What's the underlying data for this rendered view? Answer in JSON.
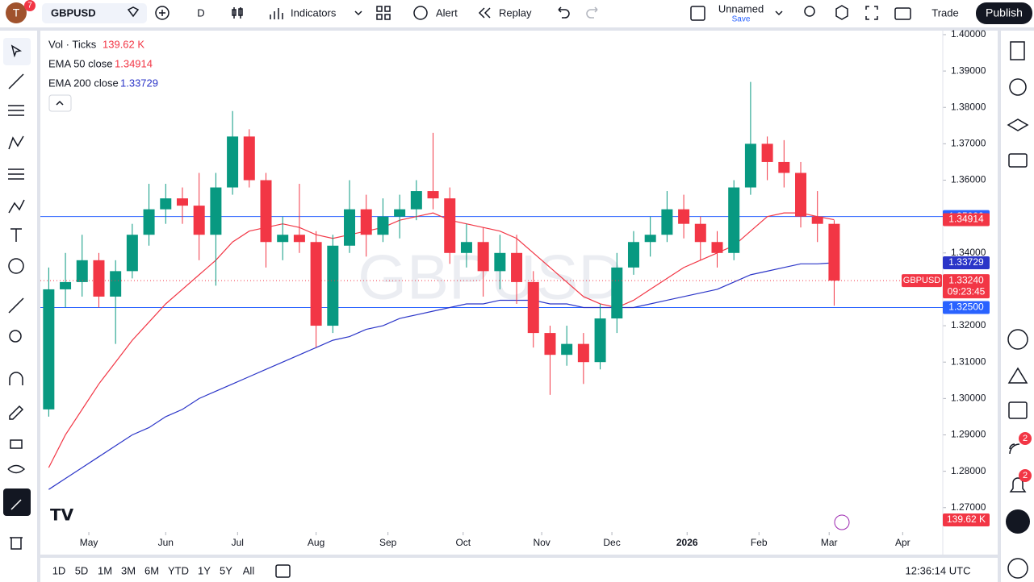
{
  "toolbar": {
    "avatar": "T",
    "avatar_badge": "7",
    "symbol": "GBPUSD",
    "interval": "D",
    "indicators": "Indicators",
    "alert": "Alert",
    "replay": "Replay",
    "layout_name": "Unnamed",
    "save": "Save",
    "trade": "Trade",
    "publish": "Publish"
  },
  "legend": {
    "volume_label": "Vol · Ticks",
    "volume_value": "139.62 K"
  },
  "bottom_bar": {
    "ranges": [
      "1D",
      "5D",
      "1M",
      "3M",
      "6M",
      "YTD",
      "1Y",
      "5Y",
      "All"
    ],
    "clock": "12:36:14 UTC"
  },
  "sidebar_badges": [
    "2",
    "2"
  ],
  "chart_data": {
    "type": "candlestick",
    "up_color": "#089981",
    "down_color": "#f23645",
    "countdown": "09:23:45",
    "last_label": "1.33240",
    "xlim": [
      0,
      54
    ],
    "xticks": [
      {
        "value": 2.9,
        "label": "May"
      },
      {
        "value": 7.5,
        "label": "Jun"
      },
      {
        "value": 11.8,
        "label": "Jul"
      },
      {
        "value": 16.5,
        "label": "Aug"
      },
      {
        "value": 20.8,
        "label": "Sep"
      },
      {
        "value": 25.3,
        "label": "Oct"
      },
      {
        "value": 30.0,
        "label": "Nov"
      },
      {
        "value": 34.2,
        "label": "Dec"
      },
      {
        "value": 38.7,
        "label": "2026"
      },
      {
        "value": 43.0,
        "label": "Feb"
      },
      {
        "value": 47.2,
        "label": "Mar"
      },
      {
        "value": 51.6,
        "label": "Apr"
      }
    ],
    "ylim": [
      1.2633,
      1.4011
    ],
    "yticks": [
      {
        "value": 1.27,
        "label": "1.27000"
      },
      {
        "value": 1.28,
        "label": "1.28000"
      },
      {
        "value": 1.29,
        "label": "1.29000"
      },
      {
        "value": 1.3,
        "label": "1.30000"
      },
      {
        "value": 1.31,
        "label": "1.31000"
      },
      {
        "value": 1.32,
        "label": "1.32000"
      },
      {
        "value": 1.33,
        "label": "1.33000"
      },
      {
        "value": 1.34,
        "label": "1.34000"
      },
      {
        "value": 1.35,
        "label": "1.35000"
      },
      {
        "value": 1.36,
        "label": "1.36000"
      },
      {
        "value": 1.37,
        "label": "1.37000"
      },
      {
        "value": 1.38,
        "label": "1.38000"
      },
      {
        "value": 1.39,
        "label": "1.39000"
      },
      {
        "value": 1.4,
        "label": "1.40000"
      }
    ],
    "x": [
      0.5,
      1.5,
      2.5,
      3.5,
      4.5,
      5.5,
      6.5,
      7.5,
      8.5,
      9.5,
      10.5,
      11.5,
      12.5,
      13.5,
      14.5,
      15.5,
      16.5,
      17.5,
      18.5,
      19.5,
      20.5,
      21.5,
      22.5,
      23.5,
      24.5,
      25.5,
      26.5,
      27.5,
      28.5,
      29.5,
      30.5,
      31.5,
      32.5,
      33.5,
      34.5,
      35.5,
      36.5,
      37.5,
      38.5,
      39.5,
      40.5,
      41.5,
      42.5,
      43.5,
      44.5,
      45.5,
      46.5,
      47.5
    ],
    "open": [
      1.297,
      1.33,
      1.332,
      1.338,
      1.328,
      1.335,
      1.345,
      1.352,
      1.355,
      1.353,
      1.345,
      1.358,
      1.372,
      1.36,
      1.343,
      1.345,
      1.343,
      1.32,
      1.342,
      1.352,
      1.345,
      1.35,
      1.352,
      1.357,
      1.355,
      1.34,
      1.343,
      1.335,
      1.34,
      1.332,
      1.318,
      1.312,
      1.315,
      1.31,
      1.322,
      1.336,
      1.343,
      1.345,
      1.352,
      1.348,
      1.343,
      1.34,
      1.358,
      1.37,
      1.365,
      1.362,
      1.35,
      1.348
    ],
    "high": [
      1.336,
      1.34,
      1.345,
      1.34,
      1.338,
      1.348,
      1.359,
      1.359,
      1.358,
      1.362,
      1.362,
      1.379,
      1.374,
      1.362,
      1.35,
      1.359,
      1.346,
      1.345,
      1.36,
      1.356,
      1.355,
      1.356,
      1.36,
      1.373,
      1.358,
      1.348,
      1.347,
      1.345,
      1.345,
      1.335,
      1.32,
      1.32,
      1.318,
      1.326,
      1.34,
      1.346,
      1.35,
      1.357,
      1.356,
      1.35,
      1.346,
      1.36,
      1.387,
      1.372,
      1.371,
      1.365,
      1.357,
      1.349
    ],
    "low": [
      1.295,
      1.325,
      1.328,
      1.325,
      1.315,
      1.333,
      1.342,
      1.348,
      1.348,
      1.338,
      1.331,
      1.356,
      1.358,
      1.336,
      1.338,
      1.34,
      1.314,
      1.318,
      1.34,
      1.339,
      1.343,
      1.344,
      1.349,
      1.352,
      1.337,
      1.336,
      1.328,
      1.33,
      1.326,
      1.314,
      1.301,
      1.309,
      1.304,
      1.308,
      1.318,
      1.334,
      1.339,
      1.343,
      1.344,
      1.338,
      1.336,
      1.338,
      1.356,
      1.36,
      1.358,
      1.347,
      1.343,
      1.3255
    ],
    "close": [
      1.33,
      1.332,
      1.338,
      1.328,
      1.335,
      1.345,
      1.352,
      1.355,
      1.353,
      1.345,
      1.358,
      1.372,
      1.36,
      1.343,
      1.345,
      1.343,
      1.32,
      1.342,
      1.352,
      1.345,
      1.35,
      1.352,
      1.357,
      1.355,
      1.34,
      1.343,
      1.335,
      1.34,
      1.332,
      1.318,
      1.312,
      1.315,
      1.31,
      1.322,
      1.336,
      1.343,
      1.345,
      1.352,
      1.348,
      1.343,
      1.34,
      1.358,
      1.37,
      1.365,
      1.362,
      1.35,
      1.348,
      1.3324
    ],
    "overlays": [
      {
        "name": "EMA 50 close",
        "color": "#f23645",
        "last_label": "1.34914",
        "values": [
          1.281,
          1.29,
          1.297,
          1.304,
          1.31,
          1.316,
          1.321,
          1.326,
          1.33,
          1.334,
          1.338,
          1.343,
          1.346,
          1.347,
          1.348,
          1.347,
          1.345,
          1.344,
          1.345,
          1.346,
          1.347,
          1.349,
          1.35,
          1.351,
          1.349,
          1.348,
          1.347,
          1.346,
          1.344,
          1.34,
          1.336,
          1.332,
          1.328,
          1.326,
          1.325,
          1.327,
          1.33,
          1.333,
          1.336,
          1.338,
          1.34,
          1.342,
          1.346,
          1.35,
          1.351,
          1.351,
          1.35,
          1.34914
        ]
      },
      {
        "name": "EMA 200 close",
        "color": "#2b35c8",
        "last_label": "1.33729",
        "values": [
          1.275,
          1.278,
          1.281,
          1.284,
          1.287,
          1.29,
          1.292,
          1.295,
          1.297,
          1.3,
          1.302,
          1.304,
          1.306,
          1.308,
          1.31,
          1.312,
          1.314,
          1.316,
          1.317,
          1.319,
          1.32,
          1.322,
          1.323,
          1.324,
          1.325,
          1.326,
          1.326,
          1.327,
          1.327,
          1.327,
          1.326,
          1.326,
          1.325,
          1.325,
          1.325,
          1.325,
          1.326,
          1.327,
          1.328,
          1.329,
          1.33,
          1.332,
          1.334,
          1.335,
          1.336,
          1.337,
          1.337,
          1.33729
        ]
      }
    ],
    "hlines": [
      {
        "value": 1.35,
        "label": "1.35000"
      },
      {
        "value": 1.325,
        "label": "1.32500"
      }
    ],
    "hline_color": "#2962ff"
  }
}
